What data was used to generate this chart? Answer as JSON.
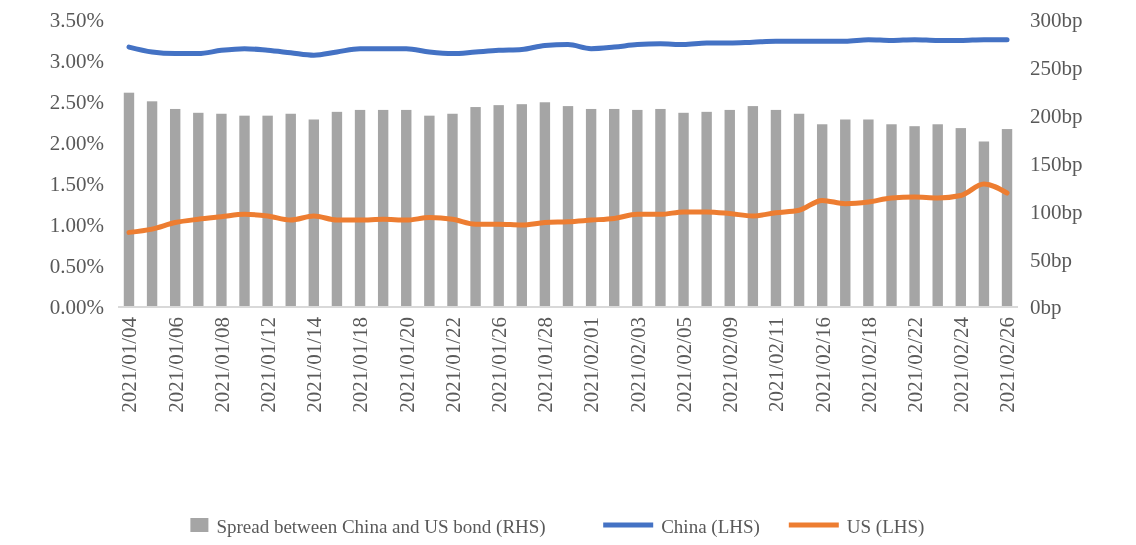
{
  "chart_data": {
    "type": "bar",
    "categories": [
      "2021/01/04",
      null,
      "2021/01/06",
      null,
      "2021/01/08",
      null,
      "2021/01/12",
      null,
      "2021/01/14",
      null,
      "2021/01/18",
      null,
      "2021/01/20",
      null,
      "2021/01/22",
      null,
      "2021/01/26",
      null,
      "2021/01/28",
      null,
      "2021/02/01",
      null,
      "2021/02/03",
      null,
      "2021/02/05",
      null,
      "2021/02/09",
      null,
      "2021/02/11",
      null,
      "2021/02/16",
      null,
      "2021/02/18",
      null,
      "2021/02/22",
      null,
      "2021/02/24",
      null,
      "2021/02/26"
    ],
    "series": [
      {
        "name": "Spread between China and US bond (RHS)",
        "axis": "y2",
        "color": "#a5a5a5",
        "values": [
          224,
          215,
          207,
          203,
          202,
          200,
          200,
          202,
          196,
          204,
          206,
          206,
          206,
          200,
          202,
          209,
          211,
          212,
          214,
          210,
          207,
          207,
          206,
          207,
          203,
          204,
          206,
          210,
          206,
          202,
          191,
          196,
          196,
          191,
          189,
          191,
          187,
          173,
          186
        ]
      },
      {
        "name": "China (LHS)",
        "type": "line",
        "color": "#4472c4",
        "values": [
          3.17,
          3.11,
          3.09,
          3.09,
          3.13,
          3.15,
          3.13,
          3.1,
          3.07,
          3.11,
          3.15,
          3.15,
          3.15,
          3.11,
          3.09,
          3.11,
          3.13,
          3.14,
          3.19,
          3.2,
          3.15,
          3.17,
          3.2,
          3.21,
          3.2,
          3.22,
          3.22,
          3.23,
          3.24,
          3.24,
          3.24,
          3.24,
          3.26,
          3.25,
          3.26,
          3.25,
          3.25,
          3.26,
          3.26
        ]
      },
      {
        "name": "US (LHS)",
        "type": "line",
        "color": "#ed7d31",
        "values": [
          0.91,
          0.95,
          1.03,
          1.07,
          1.1,
          1.13,
          1.11,
          1.06,
          1.11,
          1.06,
          1.06,
          1.07,
          1.06,
          1.09,
          1.07,
          1.01,
          1.01,
          1.0,
          1.03,
          1.04,
          1.06,
          1.08,
          1.13,
          1.13,
          1.16,
          1.16,
          1.14,
          1.11,
          1.15,
          1.18,
          1.3,
          1.26,
          1.28,
          1.33,
          1.34,
          1.33,
          1.36,
          1.5,
          1.39
        ]
      }
    ],
    "ylim": [
      0,
      3.5
    ],
    "yticks": [
      {
        "value": 0,
        "label": "0.00%"
      },
      {
        "value": 0.5,
        "label": "0.50%"
      },
      {
        "value": 1,
        "label": "1.00%"
      },
      {
        "value": 1.5,
        "label": "1.50%"
      },
      {
        "value": 2,
        "label": "2.00%"
      },
      {
        "value": 2.5,
        "label": "2.50%"
      },
      {
        "value": 3,
        "label": "3.00%"
      },
      {
        "value": 3.5,
        "label": "3.50%"
      }
    ],
    "y2lim": [
      0,
      300
    ],
    "y2ticks": [
      {
        "value": 0,
        "label": "0bp"
      },
      {
        "value": 50,
        "label": "50bp"
      },
      {
        "value": 100,
        "label": "100bp"
      },
      {
        "value": 150,
        "label": "150bp"
      },
      {
        "value": 200,
        "label": "200bp"
      },
      {
        "value": 250,
        "label": "250bp"
      },
      {
        "value": 300,
        "label": "300bp"
      }
    ],
    "grid": false,
    "legend": "bottom"
  }
}
